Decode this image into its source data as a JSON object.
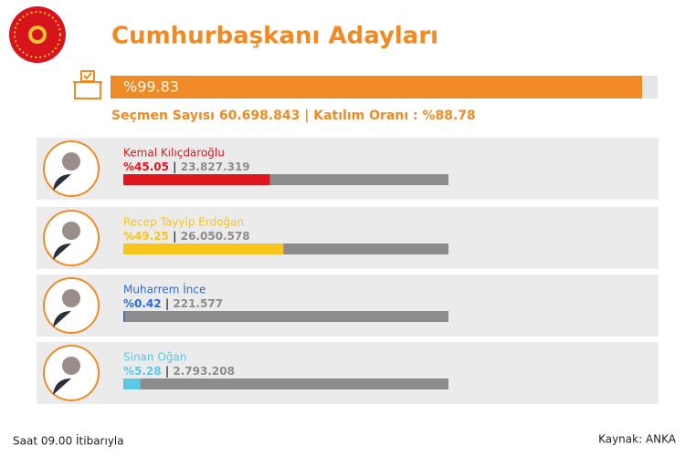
{
  "chart_data": {
    "type": "bar",
    "title": "Cumhurbaşkanı Adayları",
    "overall": {
      "value": 99.83,
      "value_label": "%99.83",
      "color": "#f08a24"
    },
    "subtitle": "Seçmen Sayısı 60.698.843 | Katılım Oranı : %88.78",
    "xlim": [
      0,
      100
    ],
    "series": [
      {
        "name": "Kemal Kılıçdaroğlu",
        "color": "#e0161e",
        "values": [
          45.05
        ],
        "value_labels": [
          "%45.05"
        ],
        "votes": "23.827.319"
      },
      {
        "name": "Recep Tayyip Erdoğan",
        "color": "#f9c41b",
        "values": [
          49.25
        ],
        "value_labels": [
          "%49.25"
        ],
        "votes": "26.050.578"
      },
      {
        "name": "Muharrem İnce",
        "color": "#2a6dd6",
        "values": [
          0.42
        ],
        "value_labels": [
          "%0.42"
        ],
        "votes": "221.577"
      },
      {
        "name": "Sinan Oğan",
        "color": "#5bc8e8",
        "values": [
          5.28
        ],
        "value_labels": [
          "%5.28"
        ],
        "votes": "2.793.208"
      }
    ],
    "footer_left": "Saat 09.00 İtibarıyla",
    "footer_right": "Kaynak: ANKA"
  }
}
